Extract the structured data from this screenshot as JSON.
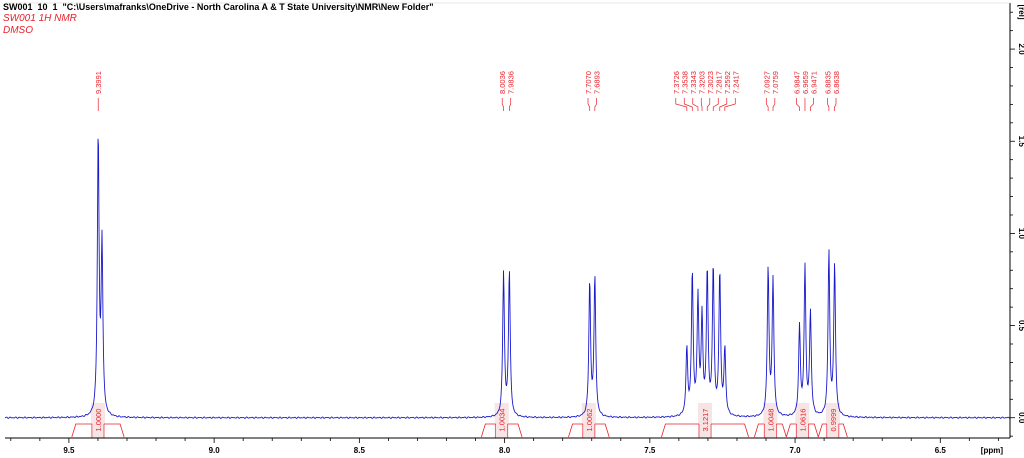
{
  "header": {
    "title": "SW001  10  1  \"C:\\Users\\mafranks\\OneDrive - North Carolina A & T State University\\NMR\\New Folder\"",
    "experiment": "SW001 1H NMR",
    "solvent": "DMSO"
  },
  "colors": {
    "spectrum": "#1a1acc",
    "annotation": "#e8202a",
    "axis": "#000000",
    "integral_fill": "#f7e4e4"
  },
  "chart_data": {
    "type": "line",
    "xlabel": "[ppm]",
    "ylabel": "[rel]",
    "x_reversed": true,
    "xlim": [
      9.72,
      6.26
    ],
    "ylim": [
      -0.11,
      2.25
    ],
    "x_ticks": [
      "9.5",
      "9.0",
      "8.5",
      "8.0",
      "7.5",
      "7.0",
      "6.5"
    ],
    "y_ticks": [
      "0.0",
      "0.5",
      "1.0",
      "1.5",
      "2.0"
    ],
    "peaks": [
      {
        "ppm": 9.3991,
        "height": 1.52
      },
      {
        "ppm": 9.386,
        "height": 0.92
      },
      {
        "ppm": 8.0036,
        "height": 0.78
      },
      {
        "ppm": 7.9836,
        "height": 0.79
      },
      {
        "ppm": 7.707,
        "height": 0.73
      },
      {
        "ppm": 7.6893,
        "height": 0.76
      },
      {
        "ppm": 7.3726,
        "height": 0.36
      },
      {
        "ppm": 7.3538,
        "height": 0.77
      },
      {
        "ppm": 7.3343,
        "height": 0.63
      },
      {
        "ppm": 7.3203,
        "height": 0.52
      },
      {
        "ppm": 7.3023,
        "height": 0.78
      },
      {
        "ppm": 7.2817,
        "height": 0.8
      },
      {
        "ppm": 7.2592,
        "height": 0.77
      },
      {
        "ppm": 7.2417,
        "height": 0.36
      },
      {
        "ppm": 7.0927,
        "height": 0.8
      },
      {
        "ppm": 7.0759,
        "height": 0.74
      },
      {
        "ppm": 6.9847,
        "height": 0.48
      },
      {
        "ppm": 6.9659,
        "height": 0.8
      },
      {
        "ppm": 6.9471,
        "height": 0.56
      },
      {
        "ppm": 6.8835,
        "height": 0.89
      },
      {
        "ppm": 6.8638,
        "height": 0.82
      }
    ],
    "peak_labels": [
      "9.3991",
      "8.0036",
      "7.9836",
      "7.7070",
      "7.6893",
      "7.3726",
      "7.3538",
      "7.3343",
      "7.3203",
      "7.3023",
      "7.2817",
      "7.2592",
      "7.2417",
      "7.0927",
      "7.0759",
      "6.9847",
      "6.9659",
      "6.9471",
      "6.8835",
      "6.8638"
    ],
    "integrals": [
      {
        "label": "1.0000",
        "from": 9.49,
        "to": 9.31
      },
      {
        "label": "1.0034",
        "from": 8.08,
        "to": 7.94
      },
      {
        "label": "1.0062",
        "from": 7.78,
        "to": 7.64
      },
      {
        "label": "3.1217",
        "from": 7.46,
        "to": 7.16
      },
      {
        "label": "1.0048",
        "from": 7.14,
        "to": 7.03
      },
      {
        "label": "1.0616",
        "from": 7.03,
        "to": 6.92
      },
      {
        "label": "0.9999",
        "from": 6.92,
        "to": 6.82
      }
    ]
  }
}
